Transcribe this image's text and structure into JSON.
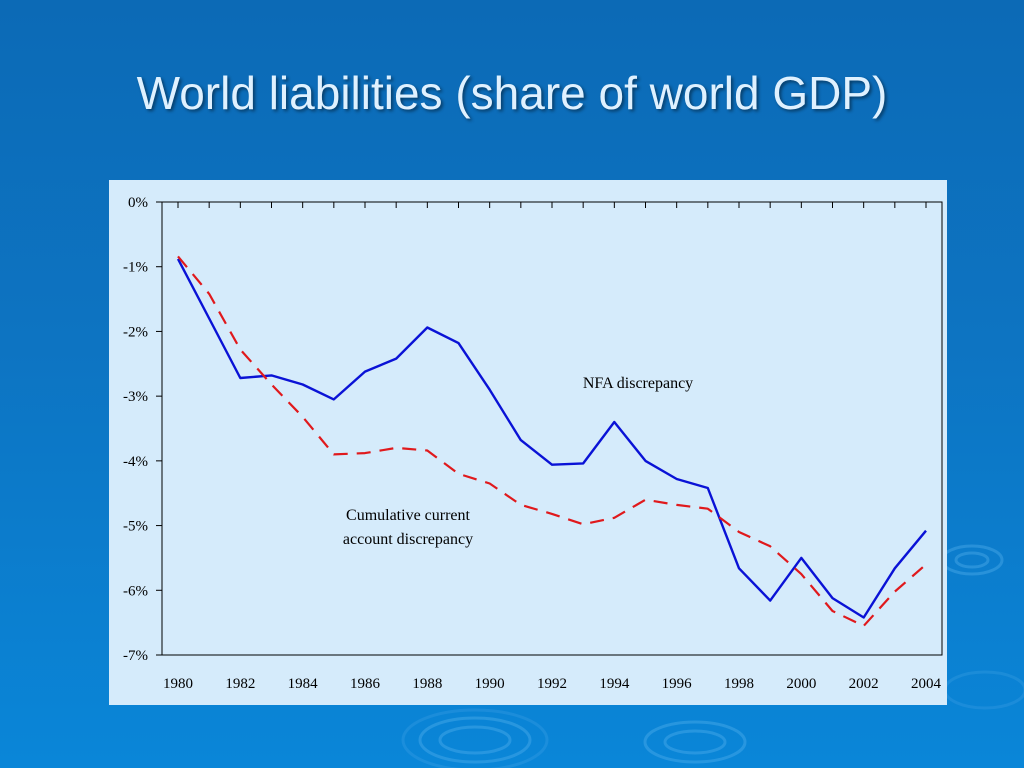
{
  "slide": {
    "title": "World liabilities (share of world GDP)"
  },
  "colors": {
    "background": "#0d74c2",
    "panel": "#d5ebfb",
    "nfa_line": "#0a12d6",
    "current_account_line": "#e0191c"
  },
  "chart_data": {
    "type": "line",
    "title": "",
    "xlabel": "",
    "ylabel": "",
    "x": [
      1980,
      1981,
      1982,
      1983,
      1984,
      1985,
      1986,
      1987,
      1988,
      1989,
      1990,
      1991,
      1992,
      1993,
      1994,
      1995,
      1996,
      1997,
      1998,
      1999,
      2000,
      2001,
      2002,
      2003,
      2004
    ],
    "xlim": [
      1980,
      2004
    ],
    "ylim": [
      -7,
      0
    ],
    "x_tick_labels": [
      "1980",
      "1982",
      "1984",
      "1986",
      "1988",
      "1990",
      "1992",
      "1994",
      "1996",
      "1998",
      "2000",
      "2002",
      "2004"
    ],
    "y_tick_labels": [
      "0%",
      "-1%",
      "-2%",
      "-3%",
      "-4%",
      "-5%",
      "-6%",
      "-7%"
    ],
    "grid": false,
    "legend": "none",
    "series": [
      {
        "name": "NFA discrepancy",
        "style": "solid",
        "values": [
          -0.88,
          -1.8,
          -2.72,
          -2.68,
          -2.82,
          -3.05,
          -2.62,
          -2.42,
          -1.94,
          -2.18,
          -2.9,
          -3.68,
          -4.06,
          -4.04,
          -3.4,
          -4.0,
          -4.28,
          -4.42,
          -5.66,
          -6.16,
          -5.5,
          -6.12,
          -6.42,
          -5.66,
          -5.08
        ]
      },
      {
        "name": "Cumulative current account discrepancy",
        "style": "dashed",
        "values": [
          -0.84,
          -1.42,
          -2.28,
          -2.82,
          -3.32,
          -3.9,
          -3.88,
          -3.8,
          -3.84,
          -4.2,
          -4.35,
          -4.68,
          -4.82,
          -4.98,
          -4.88,
          -4.6,
          -4.68,
          -4.74,
          -5.1,
          -5.32,
          -5.75,
          -6.32,
          -6.55,
          -6.02,
          -5.6
        ]
      }
    ],
    "annotations": [
      {
        "lines": [
          "NFA discrepancy"
        ],
        "near": "NFA line after 1994"
      },
      {
        "lines": [
          "Cumulative current",
          "account discrepancy"
        ],
        "near": "dashed line around 1990"
      }
    ]
  }
}
